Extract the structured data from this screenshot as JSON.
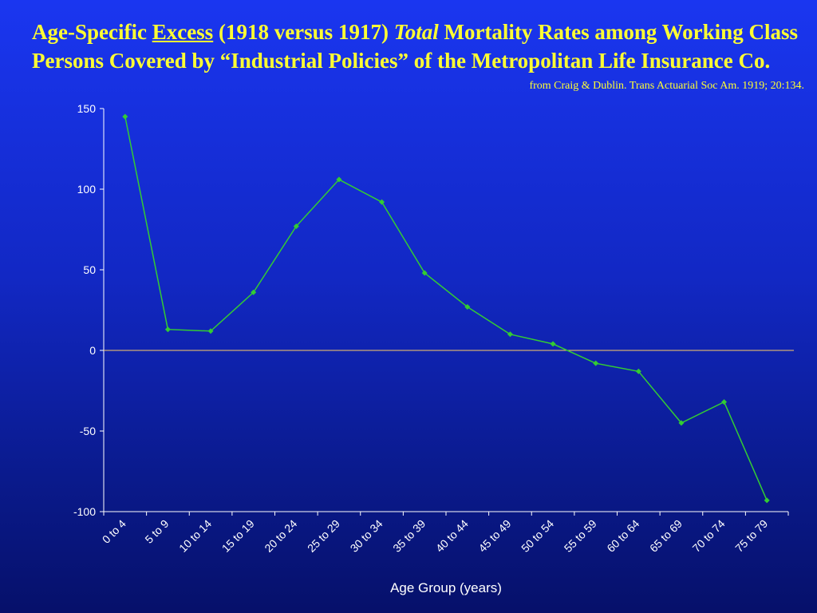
{
  "title": {
    "part1": "Age-Specific ",
    "underlined": "Excess",
    "part2": " (1918 versus 1917) ",
    "bold_italic": "Total",
    "part3": " Mortality Rates among Working Class Persons Covered by “Industrial Policies” of the Metropolitan Life Insurance Co."
  },
  "source": "from Craig & Dublin. Trans Actuarial Soc Am. 1919; 20:134.",
  "colors": {
    "title": "#ffff33",
    "line": "#33cc33",
    "zero_line": "#ffcc66",
    "axis": "#ffffff",
    "text": "#ffffff"
  },
  "chart_data": {
    "type": "line",
    "xlabel": "Age Group (years)",
    "ylabel": "",
    "ylim": [
      -100,
      150
    ],
    "yticks": [
      150,
      100,
      50,
      0,
      -50,
      -100
    ],
    "grid": false,
    "categories": [
      "0 to 4",
      "5 to 9",
      "10 to 14",
      "15 to 19",
      "20 to 24",
      "25 to 29",
      "30 to 34",
      "35 to 39",
      "40 to 44",
      "45 to 49",
      "50 to 54",
      "55 to 59",
      "60 to 64",
      "65 to 69",
      "70 to 74",
      "75 to 79"
    ],
    "series": [
      {
        "values": [
          145,
          13,
          12,
          36,
          77,
          106,
          92,
          48,
          27,
          10,
          4,
          -8,
          -13,
          -45,
          -32,
          -93
        ]
      }
    ]
  }
}
